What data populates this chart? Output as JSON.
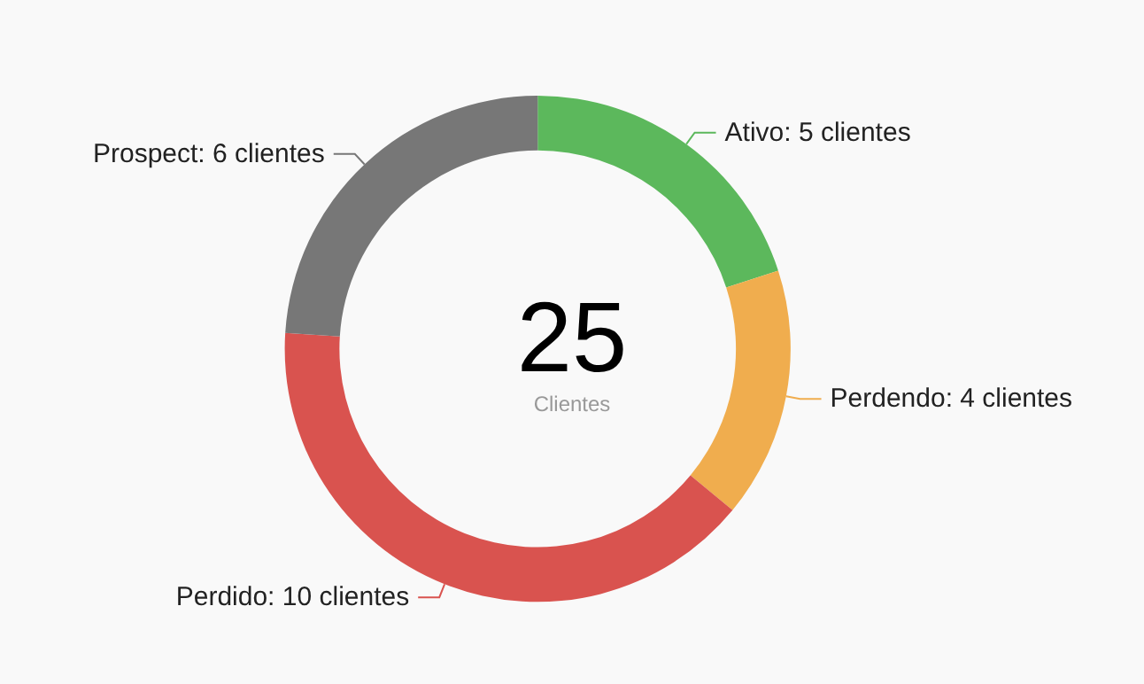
{
  "chart_data": {
    "type": "donut",
    "categories": [
      "Ativo",
      "Perdendo",
      "Perdido",
      "Prospect"
    ],
    "values": [
      5,
      4,
      10,
      6
    ],
    "colors": [
      "#5cb85c",
      "#f0ad4e",
      "#d9534f",
      "#777777"
    ],
    "value_labels": [
      "5 clientes",
      "4 clientes",
      "10 clientes",
      "6 clientes"
    ],
    "annotations": [
      "25",
      "Clientes"
    ],
    "legend": false
  }
}
